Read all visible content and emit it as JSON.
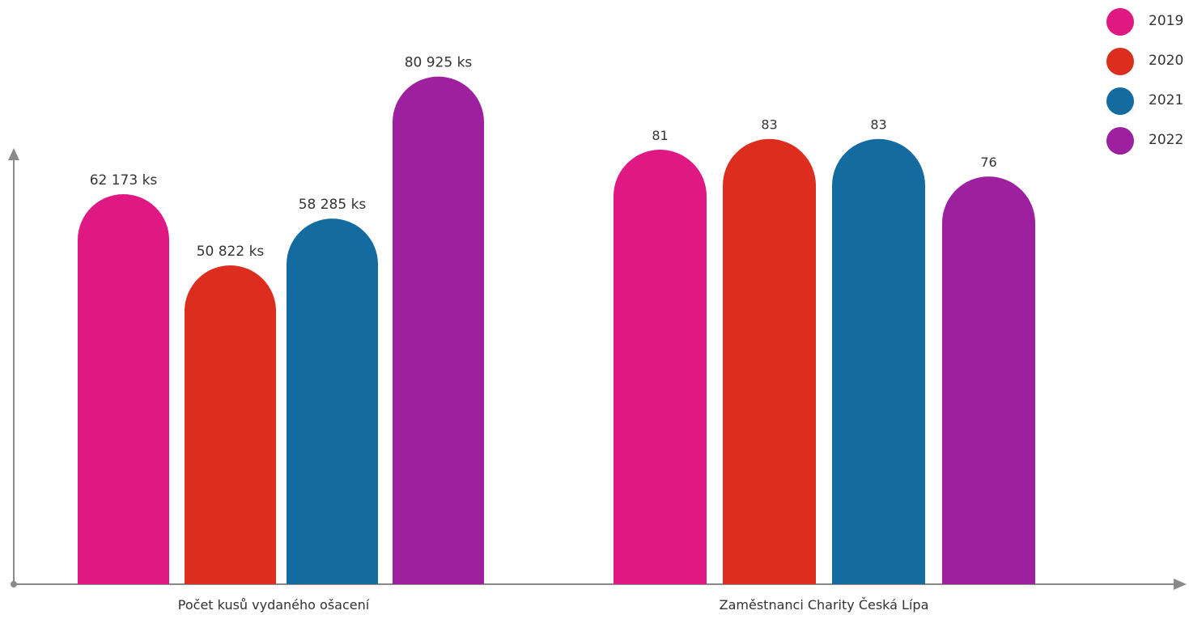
{
  "chart_data": {
    "type": "bar",
    "groups": [
      {
        "label": "Počet kusů vydaného ošacení",
        "series": [
          {
            "year": "2019",
            "value": 62173,
            "label": "62 173 ks"
          },
          {
            "year": "2020",
            "value": 50822,
            "label": "50 822 ks"
          },
          {
            "year": "2021",
            "value": 58285,
            "label": "58 285 ks"
          },
          {
            "year": "2022",
            "value": 80925,
            "label": "80 925 ks"
          }
        ]
      },
      {
        "label": "Zaměstnanci Charity Česká Lípa",
        "series": [
          {
            "year": "2019",
            "value": 81,
            "label": "81"
          },
          {
            "year": "2020",
            "value": 83,
            "label": "83"
          },
          {
            "year": "2021",
            "value": 83,
            "label": "83"
          },
          {
            "year": "2022",
            "value": 76,
            "label": "76"
          }
        ]
      }
    ],
    "legend": [
      {
        "name": "2019",
        "color": "#e01884"
      },
      {
        "name": "2020",
        "color": "#dc2d1e"
      },
      {
        "name": "2021",
        "color": "#136ba0"
      },
      {
        "name": "2022",
        "color": "#9d209f"
      }
    ],
    "legend_position": "top-right",
    "grid": false,
    "axis_color": "#8a8a8a"
  }
}
